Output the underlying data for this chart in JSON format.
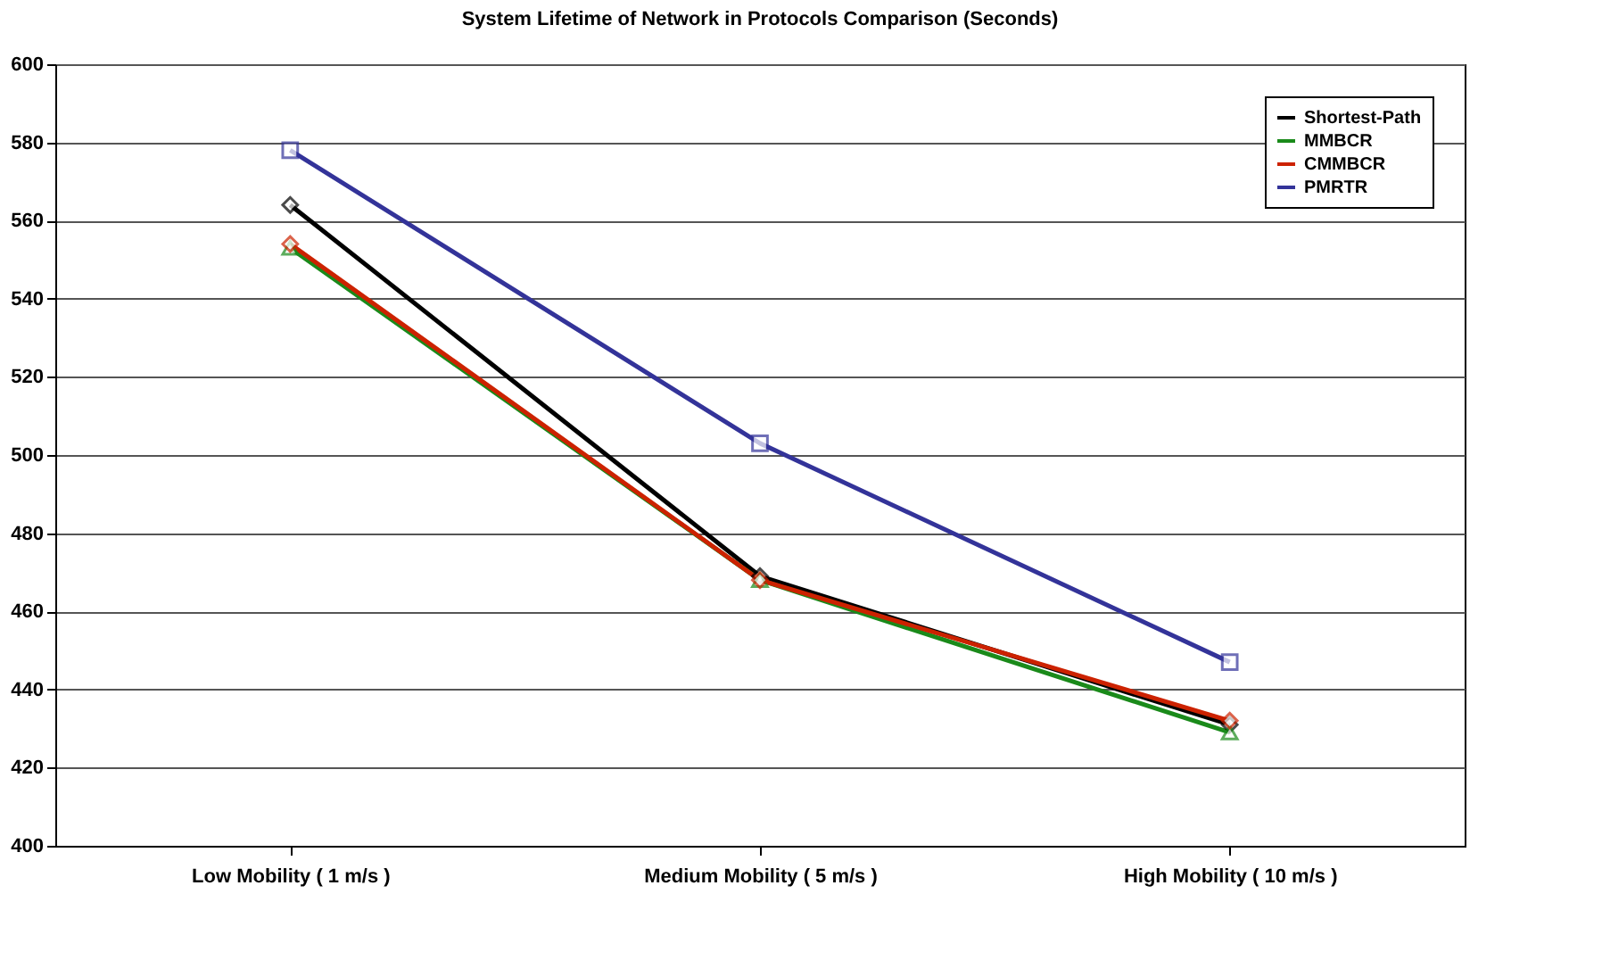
{
  "chart_data": {
    "type": "line",
    "title": "System Lifetime of Network in Protocols Comparison (Seconds)",
    "categories": [
      "Low Mobility ( 1 m/s )",
      "Medium Mobility ( 5 m/s )",
      "High Mobility ( 10 m/s )"
    ],
    "series": [
      {
        "name": "Shortest-Path",
        "color": "#000000",
        "values": [
          564,
          469,
          431
        ],
        "marker": "diamond"
      },
      {
        "name": "MMBCR",
        "color": "#1a8a1a",
        "values": [
          553,
          468,
          429
        ],
        "marker": "triangle"
      },
      {
        "name": "CMMBCR",
        "color": "#cc2200",
        "values": [
          554,
          468,
          432
        ],
        "marker": "diamond"
      },
      {
        "name": "PMRTR",
        "color": "#333399",
        "values": [
          578,
          503,
          447
        ],
        "marker": "square"
      }
    ],
    "ylim": [
      400,
      600
    ],
    "yticks": [
      400,
      420,
      440,
      460,
      480,
      500,
      520,
      540,
      560,
      580,
      600
    ],
    "grid": "y",
    "legend": "top right"
  }
}
